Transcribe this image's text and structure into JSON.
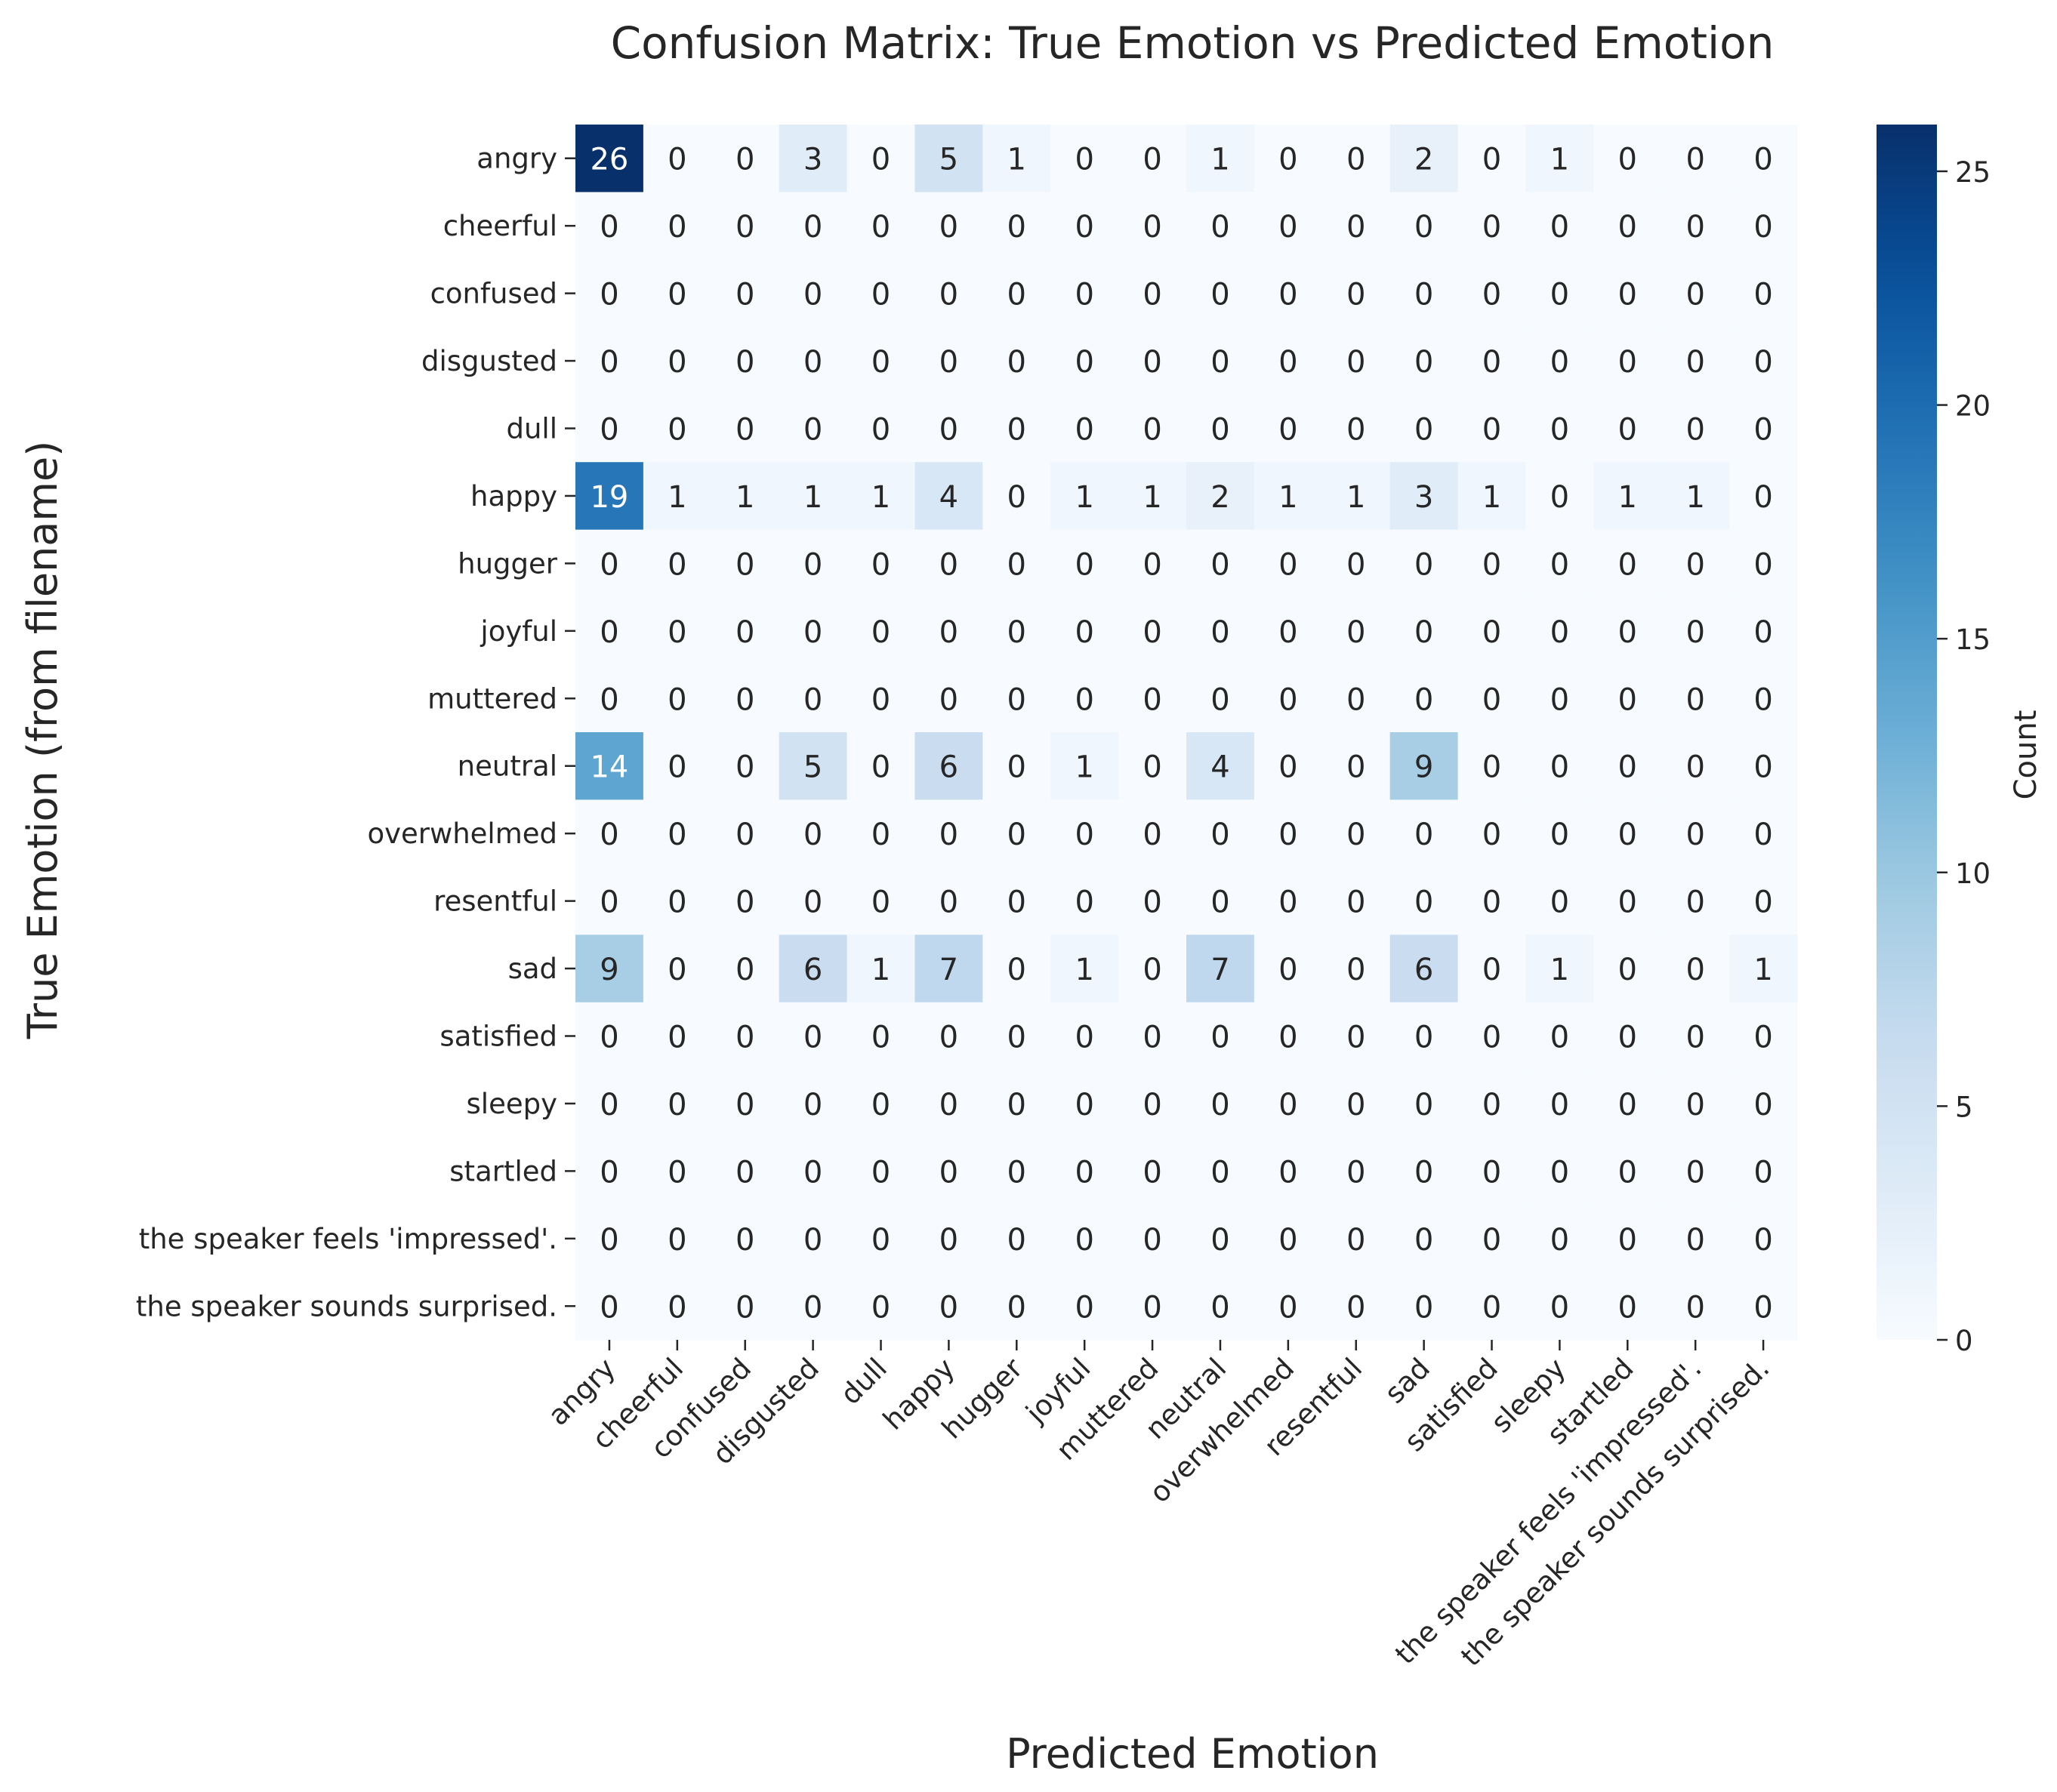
{
  "chart_data": {
    "type": "heatmap",
    "title": "Confusion Matrix: True Emotion vs Predicted Emotion",
    "xlabel": "Predicted Emotion",
    "ylabel": "True Emotion (from filename)",
    "colorbar_label": "Count",
    "colormap": "Blues",
    "vmin": 0,
    "vmax": 26,
    "colorbar_ticks": [
      0,
      5,
      10,
      15,
      20,
      25
    ],
    "x_categories": [
      "angry",
      "cheerful",
      "confused",
      "disgusted",
      "dull",
      "happy",
      "hugger",
      "joyful",
      "muttered",
      "neutral",
      "overwhelmed",
      "resentful",
      "sad",
      "satisfied",
      "sleepy",
      "startled",
      "the speaker feels 'impressed'.",
      "the speaker sounds surprised."
    ],
    "y_categories": [
      "angry",
      "cheerful",
      "confused",
      "disgusted",
      "dull",
      "happy",
      "hugger",
      "joyful",
      "muttered",
      "neutral",
      "overwhelmed",
      "resentful",
      "sad",
      "satisfied",
      "sleepy",
      "startled",
      "the speaker feels 'impressed'.",
      "the speaker sounds surprised."
    ],
    "values": [
      [
        26,
        0,
        0,
        3,
        0,
        5,
        1,
        0,
        0,
        1,
        0,
        0,
        2,
        0,
        1,
        0,
        0,
        0
      ],
      [
        0,
        0,
        0,
        0,
        0,
        0,
        0,
        0,
        0,
        0,
        0,
        0,
        0,
        0,
        0,
        0,
        0,
        0
      ],
      [
        0,
        0,
        0,
        0,
        0,
        0,
        0,
        0,
        0,
        0,
        0,
        0,
        0,
        0,
        0,
        0,
        0,
        0
      ],
      [
        0,
        0,
        0,
        0,
        0,
        0,
        0,
        0,
        0,
        0,
        0,
        0,
        0,
        0,
        0,
        0,
        0,
        0
      ],
      [
        0,
        0,
        0,
        0,
        0,
        0,
        0,
        0,
        0,
        0,
        0,
        0,
        0,
        0,
        0,
        0,
        0,
        0
      ],
      [
        19,
        1,
        1,
        1,
        1,
        4,
        0,
        1,
        1,
        2,
        1,
        1,
        3,
        1,
        0,
        1,
        1,
        0
      ],
      [
        0,
        0,
        0,
        0,
        0,
        0,
        0,
        0,
        0,
        0,
        0,
        0,
        0,
        0,
        0,
        0,
        0,
        0
      ],
      [
        0,
        0,
        0,
        0,
        0,
        0,
        0,
        0,
        0,
        0,
        0,
        0,
        0,
        0,
        0,
        0,
        0,
        0
      ],
      [
        0,
        0,
        0,
        0,
        0,
        0,
        0,
        0,
        0,
        0,
        0,
        0,
        0,
        0,
        0,
        0,
        0,
        0
      ],
      [
        14,
        0,
        0,
        5,
        0,
        6,
        0,
        1,
        0,
        4,
        0,
        0,
        9,
        0,
        0,
        0,
        0,
        0
      ],
      [
        0,
        0,
        0,
        0,
        0,
        0,
        0,
        0,
        0,
        0,
        0,
        0,
        0,
        0,
        0,
        0,
        0,
        0
      ],
      [
        0,
        0,
        0,
        0,
        0,
        0,
        0,
        0,
        0,
        0,
        0,
        0,
        0,
        0,
        0,
        0,
        0,
        0
      ],
      [
        9,
        0,
        0,
        6,
        1,
        7,
        0,
        1,
        0,
        7,
        0,
        0,
        6,
        0,
        1,
        0,
        0,
        1
      ],
      [
        0,
        0,
        0,
        0,
        0,
        0,
        0,
        0,
        0,
        0,
        0,
        0,
        0,
        0,
        0,
        0,
        0,
        0
      ],
      [
        0,
        0,
        0,
        0,
        0,
        0,
        0,
        0,
        0,
        0,
        0,
        0,
        0,
        0,
        0,
        0,
        0,
        0
      ],
      [
        0,
        0,
        0,
        0,
        0,
        0,
        0,
        0,
        0,
        0,
        0,
        0,
        0,
        0,
        0,
        0,
        0,
        0
      ],
      [
        0,
        0,
        0,
        0,
        0,
        0,
        0,
        0,
        0,
        0,
        0,
        0,
        0,
        0,
        0,
        0,
        0,
        0
      ],
      [
        0,
        0,
        0,
        0,
        0,
        0,
        0,
        0,
        0,
        0,
        0,
        0,
        0,
        0,
        0,
        0,
        0,
        0
      ]
    ]
  }
}
